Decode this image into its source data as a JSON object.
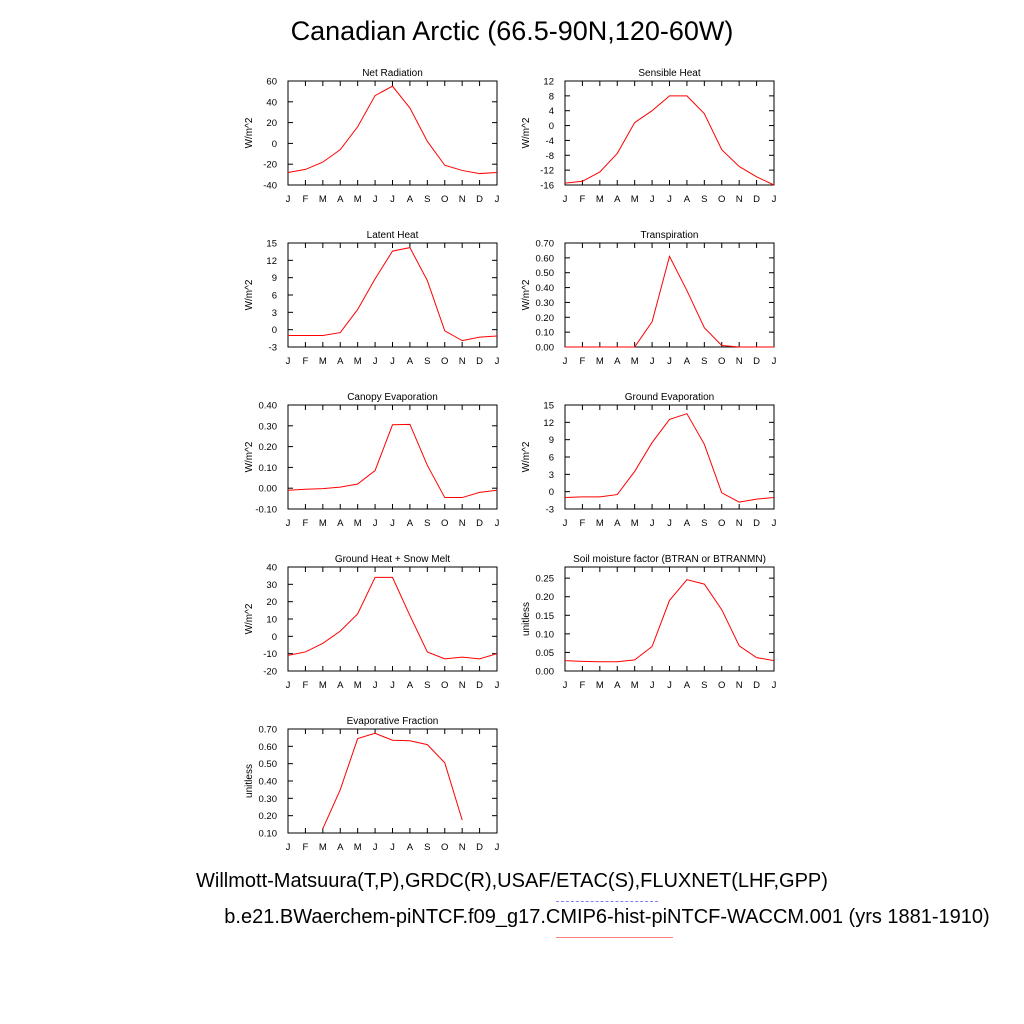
{
  "title": "Canadian Arctic (66.5-90N,120-60W)",
  "caption_line1": "Willmott-Matsuura(T,P),GRDC(R),USAF/ETAC(S),FLUXNET(LHF,GPP)",
  "caption_line2": "b.e21.BWaerchem-piNTCF.f09_g17.CMIP6-hist-piNTCF-WACCM.001 (yrs 1881-1910)",
  "colors": {
    "series": "#ff0000",
    "axes": "#000000"
  },
  "chart_data": [
    {
      "type": "line",
      "title": "Net Radiation",
      "ylabel": "W/m^2",
      "categories": [
        "J",
        "F",
        "M",
        "A",
        "M",
        "J",
        "J",
        "A",
        "S",
        "O",
        "N",
        "D",
        "J"
      ],
      "yticks": [
        -40,
        -20,
        0,
        20,
        40,
        60
      ],
      "ylim": [
        -40,
        60
      ],
      "values": [
        -28,
        -25,
        -18,
        -6,
        16,
        46,
        55,
        34,
        2,
        -21,
        -26,
        -29,
        -28
      ]
    },
    {
      "type": "line",
      "title": "Sensible Heat",
      "ylabel": "W/m^2",
      "categories": [
        "J",
        "F",
        "M",
        "A",
        "M",
        "J",
        "J",
        "A",
        "S",
        "O",
        "N",
        "D",
        "J"
      ],
      "yticks": [
        -16,
        -12,
        -8,
        -4,
        0,
        4,
        8,
        12
      ],
      "ylim": [
        -16,
        12
      ],
      "values": [
        -15.5,
        -15,
        -12.5,
        -7.5,
        0.8,
        4,
        8,
        8,
        3.2,
        -6.5,
        -11,
        -13.8,
        -16
      ]
    },
    {
      "type": "line",
      "title": "Latent Heat",
      "ylabel": "W/m^2",
      "categories": [
        "J",
        "F",
        "M",
        "A",
        "M",
        "J",
        "J",
        "A",
        "S",
        "O",
        "N",
        "D",
        "J"
      ],
      "yticks": [
        -3,
        0,
        3,
        6,
        9,
        12,
        15
      ],
      "ylim": [
        -3,
        15
      ],
      "values": [
        -1,
        -1,
        -1,
        -0.5,
        3.5,
        8.8,
        13.6,
        14.2,
        8.5,
        -0.2,
        -1.9,
        -1.3,
        -1.1
      ]
    },
    {
      "type": "line",
      "title": "Transpiration",
      "ylabel": "W/m^2",
      "categories": [
        "J",
        "F",
        "M",
        "A",
        "M",
        "J",
        "J",
        "A",
        "S",
        "O",
        "N",
        "D",
        "J"
      ],
      "yticks": [
        "0.00",
        "0.10",
        "0.20",
        "0.30",
        "0.40",
        "0.50",
        "0.60",
        "0.70"
      ],
      "ylim": [
        0,
        0.7
      ],
      "values": [
        0,
        0,
        0,
        0,
        0,
        0.17,
        0.61,
        0.38,
        0.13,
        0.01,
        0,
        0,
        0
      ]
    },
    {
      "type": "line",
      "title": "Canopy Evaporation",
      "ylabel": "W/m^2",
      "categories": [
        "J",
        "F",
        "M",
        "A",
        "M",
        "J",
        "J",
        "A",
        "S",
        "O",
        "N",
        "D",
        "J"
      ],
      "yticks": [
        "-0.10",
        "0.00",
        "0.10",
        "0.20",
        "0.30",
        "0.40"
      ],
      "ylim": [
        -0.1,
        0.4
      ],
      "values": [
        -0.01,
        -0.005,
        -0.002,
        0.005,
        0.02,
        0.085,
        0.305,
        0.307,
        0.11,
        -0.045,
        -0.045,
        -0.02,
        -0.01
      ]
    },
    {
      "type": "line",
      "title": "Ground Evaporation",
      "ylabel": "W/m^2",
      "categories": [
        "J",
        "F",
        "M",
        "A",
        "M",
        "J",
        "J",
        "A",
        "S",
        "O",
        "N",
        "D",
        "J"
      ],
      "yticks": [
        -3,
        0,
        3,
        6,
        9,
        12,
        15
      ],
      "ylim": [
        -3,
        15
      ],
      "values": [
        -1,
        -0.9,
        -0.9,
        -0.5,
        3.5,
        8.5,
        12.5,
        13.5,
        8.2,
        -0.2,
        -1.8,
        -1.3,
        -1
      ]
    },
    {
      "type": "line",
      "title": "Ground Heat + Snow Melt",
      "ylabel": "W/m^2",
      "categories": [
        "J",
        "F",
        "M",
        "A",
        "M",
        "J",
        "J",
        "A",
        "S",
        "O",
        "N",
        "D",
        "J"
      ],
      "yticks": [
        -20,
        -10,
        0,
        10,
        20,
        30,
        40
      ],
      "ylim": [
        -20,
        40
      ],
      "values": [
        -11,
        -9,
        -4,
        3,
        13,
        34,
        34,
        12,
        -9,
        -13,
        -12,
        -13,
        -10
      ]
    },
    {
      "type": "line",
      "title": "Soil moisture factor (BTRAN or BTRANMN)",
      "ylabel": "unitless",
      "categories": [
        "J",
        "F",
        "M",
        "A",
        "M",
        "J",
        "J",
        "A",
        "S",
        "O",
        "N",
        "D",
        "J"
      ],
      "yticks": [
        "0.00",
        "0.05",
        "0.10",
        "0.15",
        "0.20",
        "0.25"
      ],
      "ylim": [
        0,
        0.28
      ],
      "values": [
        0.028,
        0.026,
        0.025,
        0.025,
        0.03,
        0.066,
        0.19,
        0.246,
        0.234,
        0.165,
        0.068,
        0.036,
        0.028
      ]
    },
    {
      "type": "line",
      "title": "Evaporative Fraction",
      "ylabel": "unitless",
      "categories": [
        "J",
        "F",
        "M",
        "A",
        "M",
        "J",
        "J",
        "A",
        "S",
        "O",
        "N",
        "D",
        "J"
      ],
      "yticks": [
        "0.10",
        "0.20",
        "0.30",
        "0.40",
        "0.50",
        "0.60",
        "0.70"
      ],
      "ylim": [
        0.1,
        0.7
      ],
      "values": [
        null,
        null,
        0.125,
        0.35,
        0.645,
        0.675,
        0.635,
        0.632,
        0.61,
        0.505,
        0.175,
        null,
        null
      ]
    }
  ]
}
